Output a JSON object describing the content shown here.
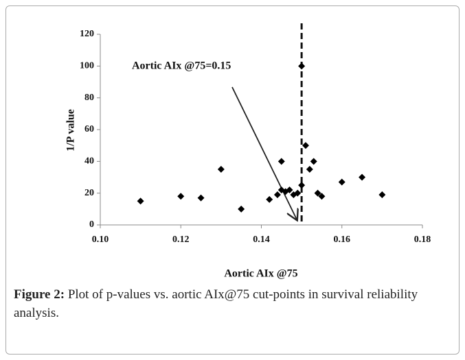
{
  "chart_data": {
    "type": "scatter",
    "annotation": "Aortic AIx @75=0.15",
    "xlabel": "Aortic AIx @75",
    "ylabel": "1/P value",
    "x": [
      0.11,
      0.12,
      0.125,
      0.13,
      0.135,
      0.142,
      0.144,
      0.145,
      0.145,
      0.146,
      0.147,
      0.148,
      0.149,
      0.15,
      0.15,
      0.151,
      0.152,
      0.153,
      0.154,
      0.155,
      0.16,
      0.165,
      0.17
    ],
    "values": [
      15,
      18,
      17,
      35,
      10,
      16,
      19,
      40,
      22,
      21,
      22,
      19,
      20,
      25,
      100,
      50,
      35,
      40,
      20,
      18,
      27,
      30,
      19
    ],
    "color": "#000000",
    "xlim": [
      0.1,
      0.18
    ],
    "xticks": [
      {
        "value": 0.1,
        "label": "0.10"
      },
      0.12,
      0.14,
      0.16,
      0.18
    ],
    "ylim": [
      0,
      120
    ],
    "yticks": [
      0,
      20,
      40,
      60,
      80,
      100,
      120
    ],
    "reference_line": {
      "x": 0.15,
      "style": "dashed"
    }
  },
  "caption": {
    "label": "Figure 2:",
    "text": "Plot of p-values vs. aortic AIx@75 cut-points in survival reliability analysis."
  }
}
